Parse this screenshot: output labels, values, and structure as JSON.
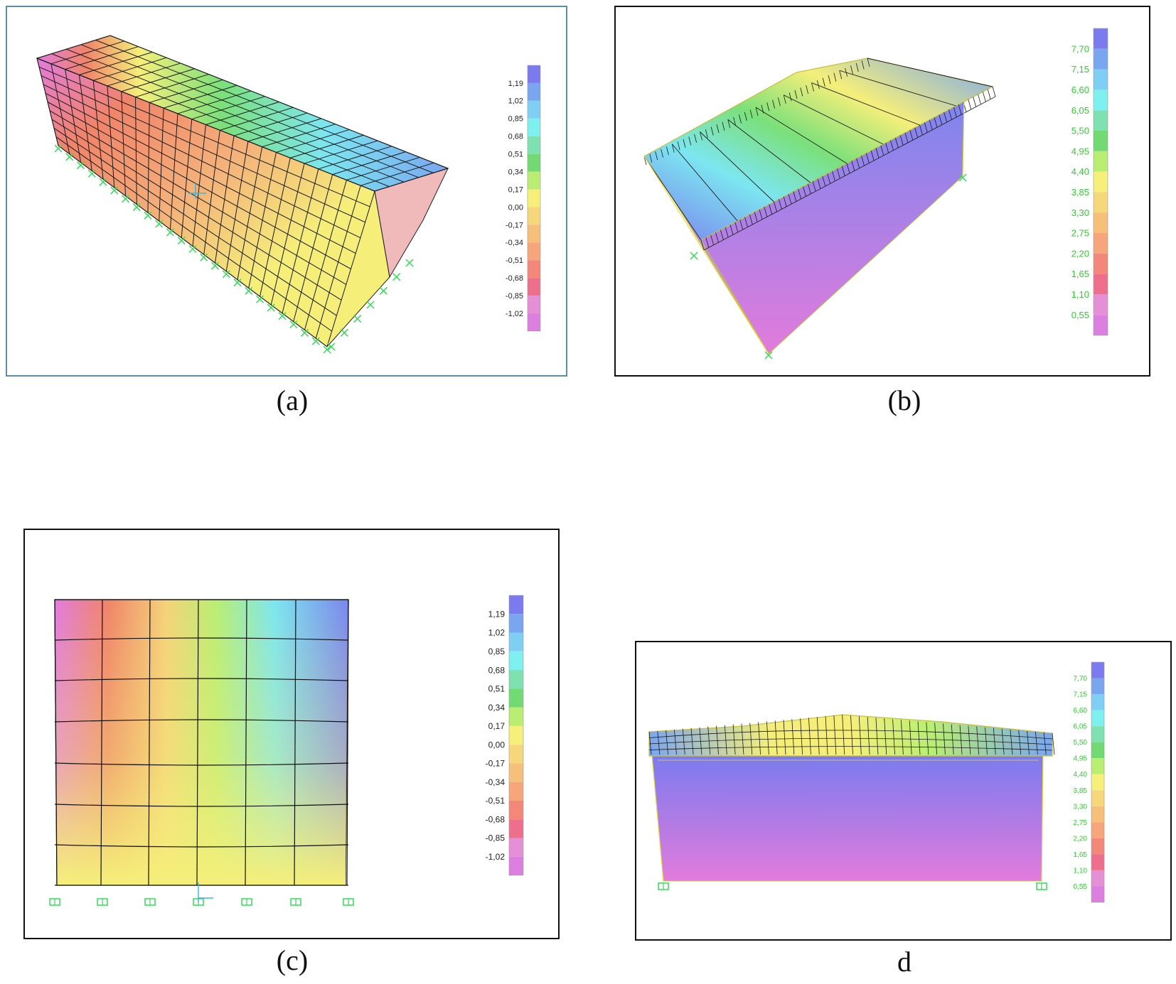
{
  "figure": {
    "panel_a": {
      "caption": "(a)",
      "legend_values": [
        "1,19",
        "1,02",
        "0,85",
        "0,68",
        "0,51",
        "0,34",
        "0,17",
        "0,00",
        "-0,17",
        "-0,34",
        "-0,51",
        "-0,68",
        "-0,85",
        "-1,02"
      ],
      "label_color": "#222222"
    },
    "panel_b": {
      "caption": "(b)",
      "legend_values": [
        "7,70",
        "7,15",
        "6,60",
        "6,05",
        "5,50",
        "4,95",
        "4,40",
        "3,85",
        "3,30",
        "2,75",
        "2,20",
        "1,65",
        "1,10",
        "0,55"
      ],
      "label_color": "#33cc33"
    },
    "panel_c": {
      "caption": "(c)",
      "legend_values": [
        "1,19",
        "1,02",
        "0,85",
        "0,68",
        "0,51",
        "0,34",
        "0,17",
        "0,00",
        "-0,17",
        "-0,34",
        "-0,51",
        "-0,68",
        "-0,85",
        "-1,02"
      ],
      "label_color": "#222222"
    },
    "panel_d": {
      "caption": "d",
      "legend_values": [
        "7,70",
        "7,15",
        "6,60",
        "6,05",
        "5,50",
        "4,95",
        "4,40",
        "3,85",
        "3,30",
        "2,75",
        "2,20",
        "1,65",
        "1,10",
        "0,55"
      ],
      "label_color": "#33cc33"
    },
    "legend_colors": [
      "#7b7bef",
      "#7aa6f0",
      "#7fcff5",
      "#7ff0f0",
      "#7fe0b0",
      "#73d973",
      "#b9ee73",
      "#f6f07a",
      "#f7d77c",
      "#f7c07a",
      "#f6a67a",
      "#f2877a",
      "#ee6f8c",
      "#e58fd6",
      "#dd7fe0"
    ],
    "colors": {
      "magenta": "#e27bdc",
      "red": "#f0846a",
      "yellow": "#f5ef7a",
      "green": "#7be07a",
      "cyan": "#7ce6f0",
      "blue": "#7b86ee",
      "support": "#33dd55"
    }
  }
}
